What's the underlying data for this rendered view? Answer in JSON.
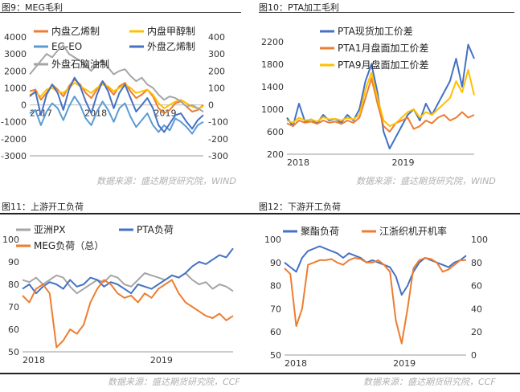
{
  "figures": [
    {
      "title": "图9：MEG毛利",
      "source": "数据来源：盛达期货研究院，WIND"
    },
    {
      "title": "图10：PTA加工毛利",
      "source": "数据来源：盛达期货研究院，WIND"
    },
    {
      "title": "图11：上游开工负荷",
      "source": "数据来源：盛达期货研究院，CCF"
    },
    {
      "title": "图12：下游开工负荷",
      "source": "数据来源：盛达期货研究院，CCF"
    }
  ],
  "colors": {
    "blue": "#4472C4",
    "orange": "#ED7D31",
    "gray": "#A5A5A5",
    "yellow": "#FFC000",
    "lightblue": "#5B9BD5"
  },
  "chart_data": [
    {
      "type": "line",
      "x_ticks": [
        "2017",
        "2018",
        "2019"
      ],
      "ylim": [
        -3000,
        4000
      ],
      "y_ticks": [
        -3000,
        -2000,
        -1000,
        0,
        1000,
        2000,
        3000,
        4000
      ],
      "y2lim": [
        -300,
        400
      ],
      "y2_ticks": [
        -300,
        -200,
        -100,
        0,
        100,
        200,
        300,
        400
      ],
      "series": [
        {
          "name": "内盘乙烯制",
          "color": "#ED7D31",
          "axis": "left",
          "values": [
            800,
            900,
            300,
            700,
            1200,
            900,
            500,
            1100,
            1500,
            1200,
            700,
            400,
            900,
            1400,
            1000,
            600,
            1100,
            1300,
            800,
            400,
            600,
            900,
            500,
            -200,
            -500,
            -300,
            100,
            200,
            -100,
            -400,
            -300,
            0
          ]
        },
        {
          "name": "内盘甲醇制",
          "color": "#FFC000",
          "axis": "left",
          "values": [
            600,
            700,
            500,
            900,
            1000,
            800,
            700,
            1000,
            1300,
            1100,
            900,
            700,
            1000,
            1200,
            1100,
            800,
            1000,
            1200,
            1000,
            700,
            800,
            900,
            600,
            100,
            -200,
            0,
            200,
            300,
            100,
            -100,
            -200,
            -100
          ]
        },
        {
          "name": "EG-EO",
          "color": "#5B9BD5",
          "axis": "left",
          "values": [
            -500,
            -300,
            -1200,
            -400,
            100,
            -200,
            -900,
            -100,
            500,
            0,
            -800,
            -1200,
            -400,
            200,
            -300,
            -1000,
            -200,
            100,
            -700,
            -1300,
            -900,
            -500,
            -1200,
            -1600,
            -1200,
            -1500,
            -800,
            -1000,
            -1300,
            -1700,
            -1200,
            -1000
          ]
        },
        {
          "name": "外盘乙烯制",
          "color": "#4472C4",
          "axis": "right",
          "values": [
            50,
            80,
            -60,
            60,
            120,
            70,
            -30,
            90,
            160,
            110,
            20,
            -50,
            60,
            140,
            80,
            -20,
            70,
            120,
            40,
            -40,
            0,
            40,
            -20,
            -120,
            -160,
            -110,
            -60,
            -50,
            -100,
            -140,
            -90,
            -60
          ]
        },
        {
          "name": "外盘石脑油制",
          "color": "#A5A5A5",
          "axis": "right",
          "values": [
            180,
            220,
            260,
            300,
            280,
            320,
            350,
            300,
            280,
            260,
            230,
            200,
            240,
            260,
            220,
            180,
            200,
            210,
            170,
            140,
            160,
            120,
            100,
            60,
            30,
            50,
            40,
            20,
            -10,
            0,
            -20,
            -40
          ]
        }
      ]
    },
    {
      "type": "line",
      "x_ticks": [
        "2018",
        "2019"
      ],
      "ylim": [
        200,
        2200
      ],
      "y_ticks": [
        200,
        600,
        1000,
        1400,
        1800,
        2200
      ],
      "series": [
        {
          "name": "PTA现货加工价差",
          "color": "#4472C4",
          "values": [
            850,
            700,
            1100,
            780,
            820,
            750,
            900,
            800,
            830,
            760,
            900,
            800,
            1000,
            1500,
            1800,
            1300,
            600,
            300,
            500,
            700,
            900,
            1000,
            800,
            1100,
            900,
            1100,
            1300,
            1500,
            1900,
            1400,
            2150,
            1900
          ]
        },
        {
          "name": "PTA1月盘面加工价差",
          "color": "#ED7D31",
          "values": [
            750,
            700,
            800,
            760,
            780,
            740,
            800,
            760,
            780,
            740,
            800,
            760,
            850,
            1200,
            1550,
            1100,
            700,
            600,
            750,
            800,
            850,
            650,
            700,
            800,
            750,
            850,
            900,
            800,
            850,
            950,
            850,
            900
          ]
        },
        {
          "name": "PTA9月盘面加工价差",
          "color": "#FFC000",
          "values": [
            800,
            760,
            850,
            800,
            820,
            780,
            860,
            820,
            830,
            800,
            850,
            820,
            900,
            1350,
            1650,
            1200,
            800,
            700,
            750,
            850,
            950,
            1000,
            850,
            950,
            900,
            1000,
            1100,
            1200,
            1500,
            1300,
            1700,
            1250
          ]
        }
      ]
    },
    {
      "type": "line",
      "x_ticks": [
        "2018",
        "2019"
      ],
      "ylim": [
        50,
        100
      ],
      "y_ticks": [
        50,
        60,
        70,
        80,
        90,
        100
      ],
      "series": [
        {
          "name": "亚洲PX",
          "color": "#A5A5A5",
          "values": [
            82,
            81,
            83,
            80,
            82,
            84,
            83,
            79,
            76,
            78,
            80,
            82,
            81,
            84,
            83,
            80,
            79,
            82,
            85,
            84,
            83,
            82,
            84,
            83,
            85,
            82,
            80,
            81,
            78,
            80,
            79,
            77
          ]
        },
        {
          "name": "PTA负荷",
          "color": "#4472C4",
          "values": [
            78,
            80,
            76,
            79,
            81,
            80,
            78,
            82,
            79,
            80,
            83,
            82,
            79,
            81,
            80,
            78,
            76,
            80,
            79,
            78,
            80,
            82,
            84,
            83,
            85,
            88,
            90,
            89,
            91,
            93,
            92,
            96
          ]
        },
        {
          "name": "MEG负荷（总）",
          "color": "#ED7D31",
          "values": [
            75,
            72,
            78,
            80,
            76,
            52,
            55,
            60,
            58,
            62,
            72,
            78,
            82,
            80,
            76,
            74,
            75,
            72,
            76,
            74,
            78,
            80,
            82,
            76,
            72,
            70,
            68,
            66,
            65,
            67,
            64,
            66
          ]
        }
      ]
    },
    {
      "type": "line",
      "x_ticks": [
        "2018",
        "2019"
      ],
      "ylim": [
        50,
        100
      ],
      "y_ticks": [
        50,
        60,
        70,
        80,
        90,
        100
      ],
      "y2lim": [
        0,
        100
      ],
      "y2_ticks": [
        0,
        20,
        40,
        60,
        80,
        100
      ],
      "series": [
        {
          "name": "聚酯负荷",
          "color": "#4472C4",
          "axis": "left",
          "values": [
            90,
            88,
            86,
            92,
            95,
            96,
            97,
            96,
            95,
            94,
            92,
            94,
            93,
            92,
            90,
            91,
            90,
            89,
            88,
            84,
            76,
            80,
            86,
            90,
            92,
            91,
            90,
            89,
            88,
            90,
            91,
            93
          ]
        },
        {
          "name": "江浙织机开机率",
          "color": "#ED7D31",
          "axis": "right",
          "values": [
            75,
            70,
            25,
            40,
            78,
            80,
            82,
            82,
            83,
            80,
            78,
            82,
            84,
            83,
            80,
            80,
            82,
            78,
            72,
            30,
            10,
            40,
            75,
            82,
            84,
            83,
            80,
            72,
            74,
            78,
            82,
            82
          ]
        }
      ]
    }
  ]
}
